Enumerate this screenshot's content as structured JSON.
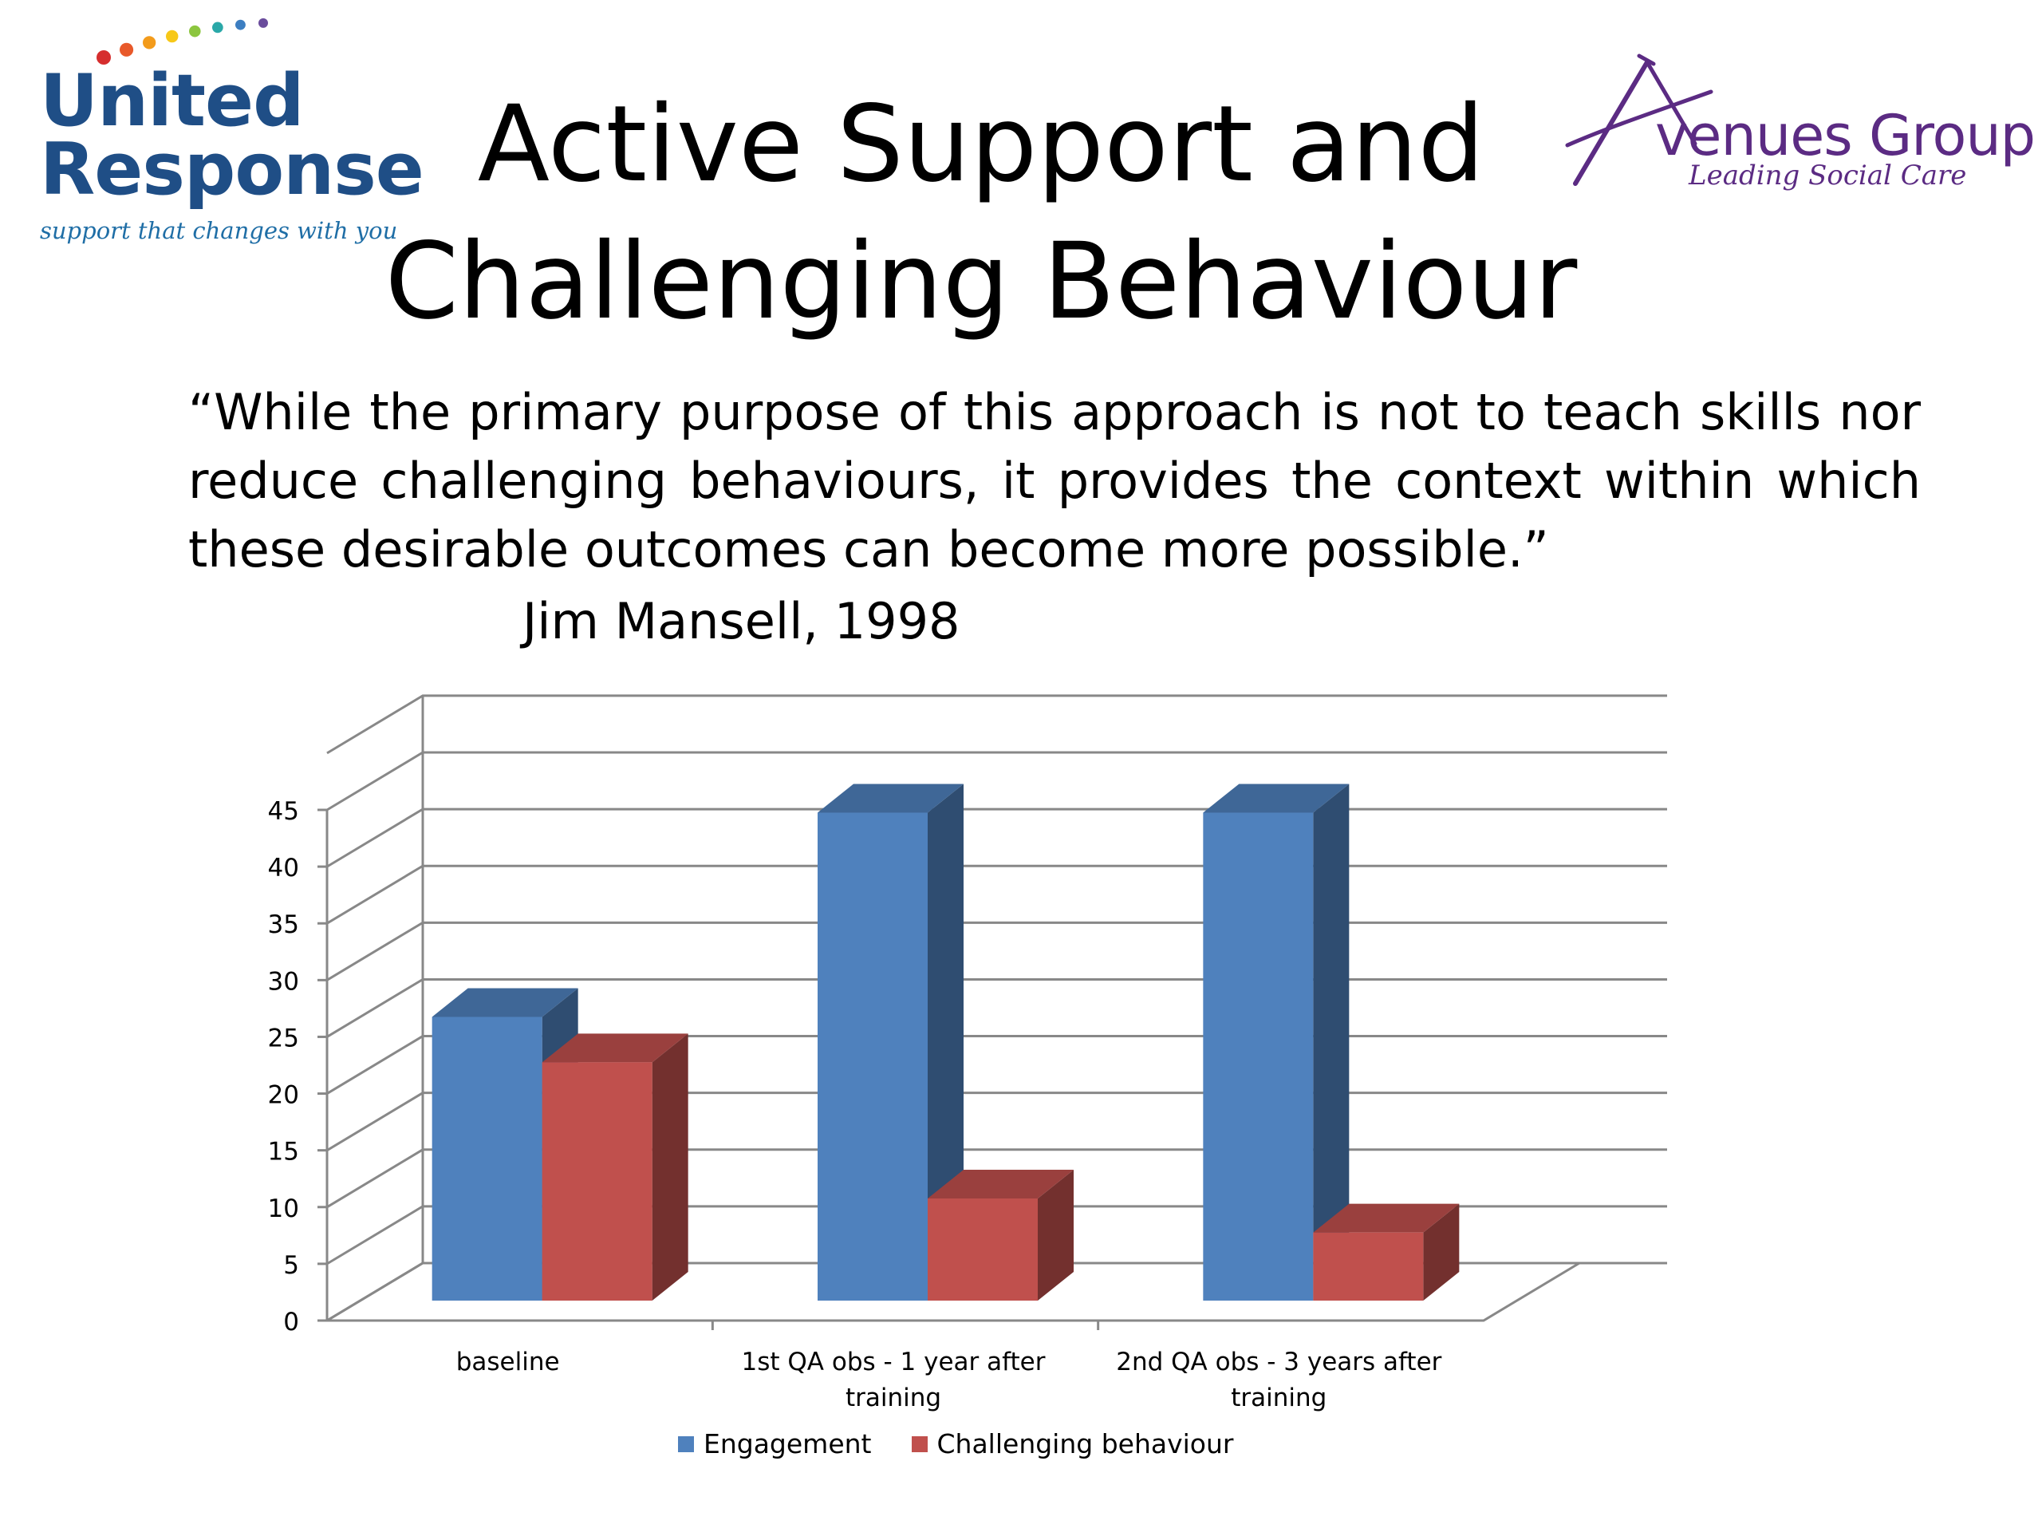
{
  "logos": {
    "united_response": {
      "line1": "United",
      "line2": "Response",
      "tagline": "support that changes with you",
      "dot_colors": [
        "#d62e2e",
        "#e8592a",
        "#f39b1b",
        "#f7c818",
        "#8cc63f",
        "#2aa8a8",
        "#3c7ec1",
        "#6a4c9c"
      ]
    },
    "avenues_group": {
      "name": "venues Group",
      "tagline": "Leading Social Care",
      "color": "#5b2b83"
    }
  },
  "title": {
    "line1": "Active Support and",
    "line2": "Challenging Behaviour"
  },
  "quote": {
    "text": "“While the primary purpose of this approach is not to teach skills nor reduce challenging behaviours, it provides the context within which these desirable outcomes can become more possible.”",
    "author": "Jim Mansell, 1998"
  },
  "chart_data": {
    "type": "bar",
    "style": "3d-clustered-column",
    "categories": [
      [
        "baseline"
      ],
      [
        "1st QA obs - 1 year after",
        "training"
      ],
      [
        "2nd QA obs - 3 years after",
        "training"
      ]
    ],
    "series": [
      {
        "name": "Engagement",
        "values": [
          25,
          43,
          43
        ],
        "color": "#4f81bd"
      },
      {
        "name": "Challenging behaviour",
        "values": [
          21,
          9,
          6
        ],
        "color": "#c0504d"
      }
    ],
    "ylim": [
      0,
      45
    ],
    "yticks": [
      0,
      5,
      10,
      15,
      20,
      25,
      30,
      35,
      40,
      45
    ],
    "grid": true,
    "legend": "bottom"
  }
}
